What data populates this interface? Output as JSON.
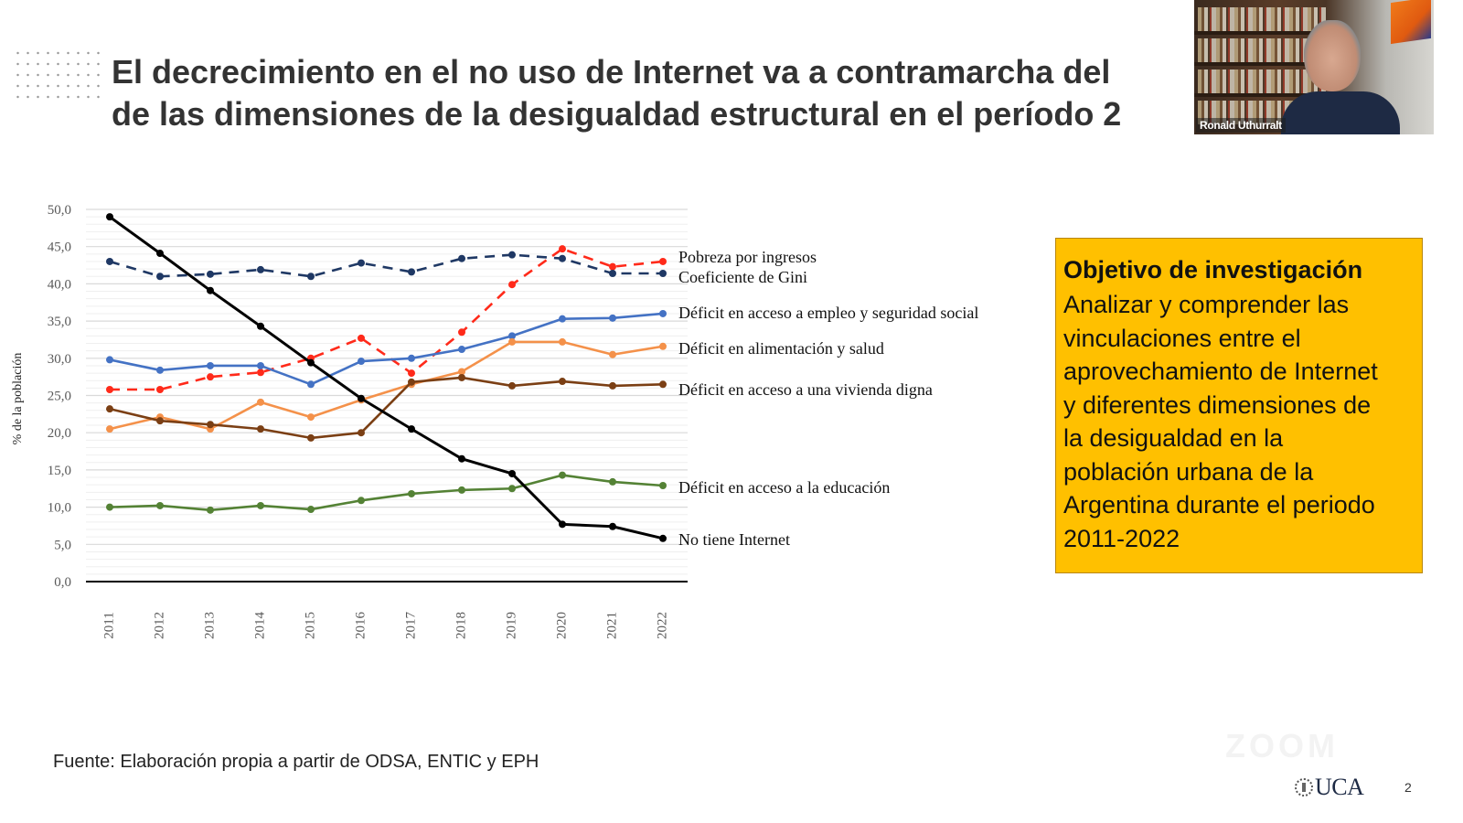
{
  "slide": {
    "title_lines": [
      "El decrecimiento en el no uso de Internet va a contramarcha del",
      "de las dimensiones de la desigualdad estructural en el período 2"
    ],
    "source_note": "Fuente: Elaboración propia a partir de ODSA, ENTIC y EPH",
    "page_number": "2",
    "logo_text": "UCA",
    "watermark": "ZOOM"
  },
  "video": {
    "participant_name": "Ronald Uthurralt"
  },
  "objective": {
    "title": "Objetivo de investigación",
    "body_lines": [
      "Analizar y comprender las",
      "vinculaciones entre el",
      "aprovechamiento de Internet",
      "y diferentes dimensiones de",
      "la desigualdad en la",
      "población urbana de la",
      "Argentina durante el periodo",
      "2011-2022"
    ],
    "background_color": "#ffc000"
  },
  "chart_data": {
    "type": "line",
    "title": "",
    "xlabel": "",
    "ylabel": "% de la población",
    "ylim": [
      0,
      50
    ],
    "y_ticks": [
      "0,0",
      "5,0",
      "10,0",
      "15,0",
      "20,0",
      "25,0",
      "30,0",
      "35,0",
      "40,0",
      "45,0",
      "50,0"
    ],
    "y_tick_values": [
      0,
      5,
      10,
      15,
      20,
      25,
      30,
      35,
      40,
      45,
      50
    ],
    "grid": true,
    "legend_placement": "right (inline labels at line ends)",
    "categories": [
      "2011",
      "2012",
      "2013",
      "2014",
      "2015",
      "2016",
      "2017",
      "2018",
      "2019",
      "2020",
      "2021",
      "2022"
    ],
    "series": [
      {
        "name": "Pobreza por ingresos",
        "color": "#ff2a1a",
        "dashed": true,
        "values": [
          25.8,
          25.8,
          27.5,
          28.1,
          30.0,
          32.7,
          28.0,
          33.5,
          39.9,
          44.7,
          42.3,
          43.0
        ]
      },
      {
        "name": "Coeficiente de Gini",
        "color": "#1f3864",
        "dashed": true,
        "values": [
          43.0,
          41.0,
          41.3,
          41.9,
          41.0,
          42.8,
          41.6,
          43.4,
          43.9,
          43.4,
          41.4,
          41.4
        ]
      },
      {
        "name": "Déficit en acceso a empleo y seguridad social",
        "color": "#4472c4",
        "dashed": false,
        "values": [
          29.8,
          28.4,
          29.0,
          29.0,
          26.5,
          29.6,
          30.0,
          31.2,
          33.0,
          35.3,
          35.4,
          36.0
        ]
      },
      {
        "name": "Déficit en alimentación y salud",
        "color": "#f4914a",
        "dashed": false,
        "values": [
          20.5,
          22.1,
          20.5,
          24.1,
          22.1,
          24.4,
          26.5,
          28.2,
          32.2,
          32.2,
          30.5,
          31.6
        ]
      },
      {
        "name": "Déficit en acceso a una vivienda digna",
        "color": "#7b3f14",
        "dashed": false,
        "values": [
          23.2,
          21.6,
          21.1,
          20.5,
          19.3,
          20.0,
          26.8,
          27.4,
          26.3,
          26.9,
          26.3,
          26.5
        ]
      },
      {
        "name": "Déficit en acceso a la educación",
        "color": "#548235",
        "dashed": false,
        "values": [
          10.0,
          10.2,
          9.6,
          10.2,
          9.7,
          10.9,
          11.8,
          12.3,
          12.5,
          14.3,
          13.4,
          12.9
        ]
      },
      {
        "name": "No tiene Internet",
        "color": "#000000",
        "dashed": false,
        "values": [
          49.0,
          44.1,
          39.1,
          34.3,
          29.4,
          24.6,
          20.5,
          16.5,
          14.5,
          7.7,
          7.4,
          5.8
        ]
      }
    ]
  }
}
